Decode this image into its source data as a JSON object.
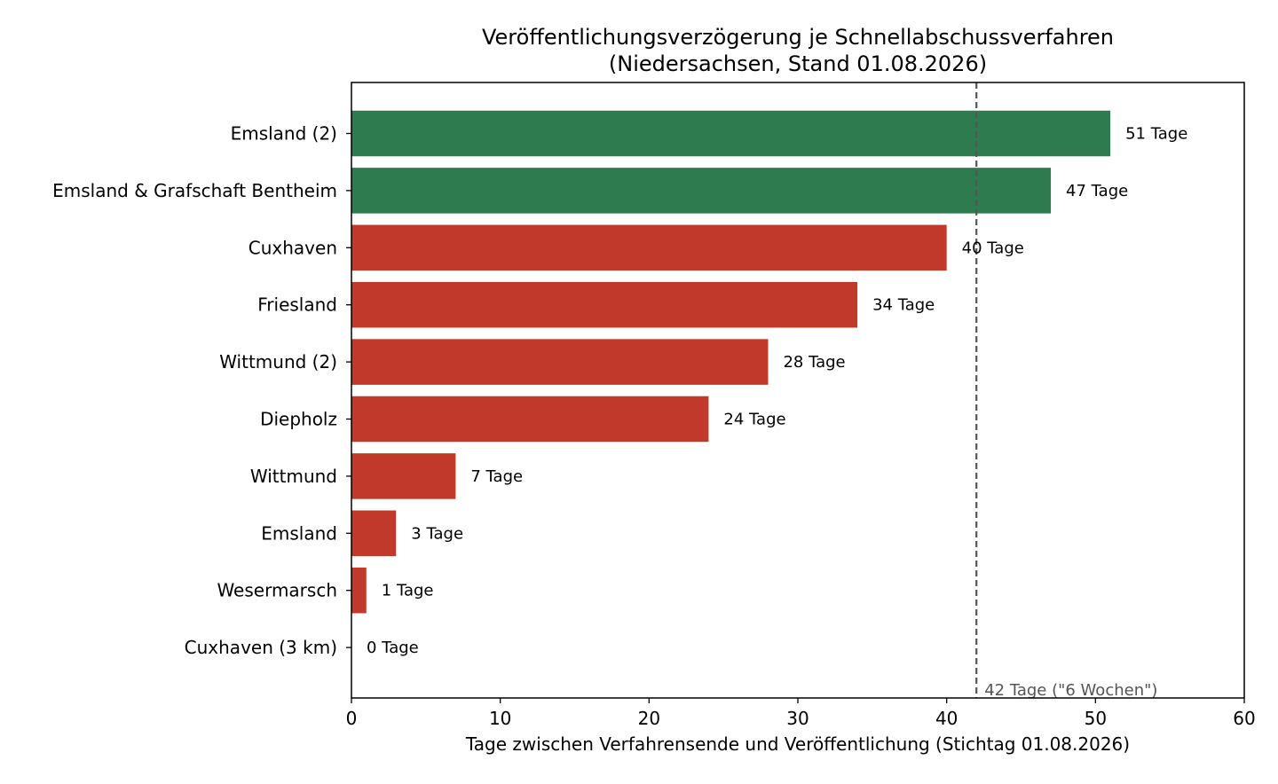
{
  "chart_data": {
    "type": "bar",
    "orientation": "horizontal",
    "title_line1": "Veröffentlichungsverzögerung je Schnellabschussverfahren",
    "title_line2": "(Niedersachsen, Stand 01.08.2026)",
    "xlabel": "Tage zwischen Verfahrensende und Veröffentlichung (Stichtag 01.08.2026)",
    "ylabel": "",
    "xlim": [
      0,
      60
    ],
    "xticks": [
      0,
      10,
      20,
      30,
      40,
      50,
      60
    ],
    "grid": false,
    "categories": [
      "Emsland (2)",
      "Emsland & Grafschaft Bentheim",
      "Cuxhaven",
      "Friesland",
      "Wittmund (2)",
      "Diepholz",
      "Wittmund",
      "Emsland",
      "Wesermarsch",
      "Cuxhaven (3 km)"
    ],
    "values": [
      51,
      47,
      40,
      34,
      28,
      24,
      7,
      3,
      1,
      0
    ],
    "value_labels": [
      "51 Tage",
      "47 Tage",
      "40 Tage",
      "34 Tage",
      "28 Tage",
      "24 Tage",
      "7 Tage",
      "3 Tage",
      "1 Tage",
      "0 Tage"
    ],
    "bar_colors": [
      "#2e7b4f",
      "#2e7b4f",
      "#c0392b",
      "#c0392b",
      "#c0392b",
      "#c0392b",
      "#c0392b",
      "#c0392b",
      "#c0392b",
      "#c0392b"
    ],
    "reference_line": {
      "value": 42,
      "label": "42 Tage (\"6 Wochen\")",
      "color": "#555555",
      "style": "dashed"
    }
  }
}
